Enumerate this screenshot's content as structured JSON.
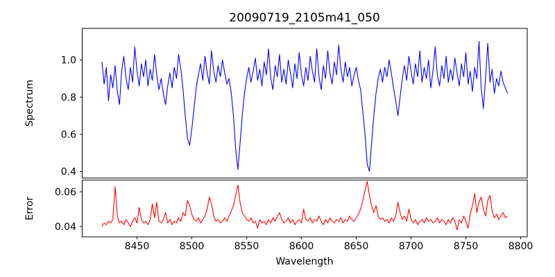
{
  "title": "20090719_2105m41_050",
  "chart_data": {
    "type": "line",
    "title": "20090719_2105m41_050",
    "xlabel": "Wavelength",
    "xlim": [
      8400,
      8806
    ],
    "xticks": [
      8450,
      8500,
      8550,
      8600,
      8650,
      8700,
      8750,
      8800
    ],
    "xtick_labels": [
      "8450",
      "8500",
      "8550",
      "8600",
      "8650",
      "8700",
      "8750",
      "8800"
    ],
    "grid": false,
    "legend": null,
    "x": [
      8418,
      8420,
      8422,
      8424,
      8426,
      8428,
      8430,
      8432,
      8434,
      8436,
      8438,
      8440,
      8442,
      8444,
      8446,
      8448,
      8450,
      8452,
      8454,
      8456,
      8458,
      8460,
      8462,
      8464,
      8466,
      8468,
      8470,
      8472,
      8474,
      8476,
      8478,
      8480,
      8482,
      8484,
      8486,
      8488,
      8490,
      8492,
      8494,
      8496,
      8498,
      8500,
      8502,
      8504,
      8506,
      8508,
      8510,
      8512,
      8514,
      8516,
      8518,
      8520,
      8522,
      8524,
      8526,
      8528,
      8530,
      8532,
      8534,
      8536,
      8538,
      8540,
      8542,
      8544,
      8546,
      8548,
      8550,
      8552,
      8554,
      8556,
      8558,
      8560,
      8562,
      8564,
      8566,
      8568,
      8570,
      8572,
      8574,
      8576,
      8578,
      8580,
      8582,
      8584,
      8586,
      8588,
      8590,
      8592,
      8594,
      8596,
      8598,
      8600,
      8602,
      8604,
      8606,
      8608,
      8610,
      8612,
      8614,
      8616,
      8618,
      8620,
      8622,
      8624,
      8626,
      8628,
      8630,
      8632,
      8634,
      8636,
      8638,
      8640,
      8642,
      8644,
      8646,
      8648,
      8650,
      8652,
      8654,
      8656,
      8658,
      8660,
      8662,
      8664,
      8666,
      8668,
      8670,
      8672,
      8674,
      8676,
      8678,
      8680,
      8682,
      8684,
      8686,
      8688,
      8690,
      8692,
      8694,
      8696,
      8698,
      8700,
      8702,
      8704,
      8706,
      8708,
      8710,
      8712,
      8714,
      8716,
      8718,
      8720,
      8722,
      8724,
      8726,
      8728,
      8730,
      8732,
      8734,
      8736,
      8738,
      8740,
      8742,
      8744,
      8746,
      8748,
      8750,
      8752,
      8754,
      8756,
      8758,
      8760,
      8762,
      8764,
      8766,
      8768,
      8770,
      8772,
      8774,
      8776,
      8778,
      8780,
      8782,
      8784,
      8786,
      8788
    ],
    "panels": [
      {
        "ylabel": "Spectrum",
        "color": "#0000ff",
        "ylim": [
          0.365,
          1.17
        ],
        "yticks": [
          0.4,
          0.6,
          0.8,
          1.0
        ],
        "ytick_labels": [
          "0.4",
          "0.6",
          "0.8",
          "1.0"
        ],
        "absorption_features": [
          8476,
          8498,
          8542,
          8662,
          8688
        ],
        "values": [
          0.99,
          0.87,
          0.96,
          0.78,
          0.92,
          0.85,
          0.97,
          0.83,
          0.76,
          0.94,
          1.02,
          0.9,
          0.84,
          0.96,
          0.88,
          1.07,
          0.94,
          0.86,
          0.98,
          0.91,
          1.0,
          0.86,
          0.95,
          0.89,
          1.03,
          0.92,
          0.84,
          0.9,
          0.82,
          0.76,
          0.86,
          0.93,
          0.85,
          0.96,
          0.9,
          1.03,
          0.95,
          0.84,
          0.7,
          0.58,
          0.54,
          0.63,
          0.74,
          0.85,
          0.92,
          0.98,
          0.89,
          1.02,
          0.93,
          0.87,
          1.05,
          0.94,
          0.88,
          0.97,
          0.91,
          1.0,
          0.93,
          0.87,
          0.9,
          0.82,
          0.7,
          0.52,
          0.41,
          0.55,
          0.7,
          0.82,
          0.9,
          0.96,
          0.88,
          0.94,
          1.01,
          0.89,
          0.95,
          0.86,
          0.99,
          0.92,
          1.06,
          0.9,
          0.84,
          0.97,
          0.91,
          1.03,
          0.88,
          0.95,
          0.87,
          1.0,
          0.93,
          0.85,
          0.98,
          0.9,
          1.04,
          0.92,
          0.86,
          0.96,
          0.89,
          1.02,
          0.94,
          0.88,
          1.06,
          0.91,
          0.84,
          0.97,
          0.9,
          1.05,
          0.93,
          0.87,
          0.99,
          0.92,
          1.08,
          0.95,
          0.88,
          0.99,
          0.91,
          0.96,
          0.86,
          0.92,
          0.96,
          0.89,
          0.84,
          0.72,
          0.6,
          0.44,
          0.4,
          0.55,
          0.7,
          0.82,
          0.9,
          0.95,
          0.88,
          0.96,
          0.91,
          1.0,
          0.93,
          0.85,
          0.78,
          0.7,
          0.8,
          0.9,
          0.97,
          0.89,
          1.02,
          0.94,
          0.87,
          0.98,
          0.91,
          1.05,
          0.88,
          0.96,
          0.9,
          1.0,
          0.85,
          0.94,
          1.07,
          0.92,
          0.86,
          0.97,
          0.9,
          1.02,
          0.88,
          0.95,
          0.89,
          1.01,
          0.93,
          0.86,
          0.98,
          0.91,
          1.04,
          0.87,
          0.94,
          0.83,
          0.96,
          0.9,
          1.1,
          0.85,
          0.74,
          0.91,
          1.09,
          0.88,
          0.95,
          0.82,
          0.9,
          0.86,
          0.94,
          0.88,
          0.85,
          0.82
        ]
      },
      {
        "ylabel": "Error",
        "color": "#ff0000",
        "ylim": [
          0.034,
          0.0668
        ],
        "yticks": [
          0.04,
          0.06
        ],
        "ytick_labels": [
          "0.04",
          "0.06"
        ],
        "values": [
          0.04,
          0.042,
          0.041,
          0.043,
          0.042,
          0.044,
          0.063,
          0.046,
          0.042,
          0.043,
          0.041,
          0.044,
          0.042,
          0.04,
          0.043,
          0.045,
          0.042,
          0.051,
          0.044,
          0.042,
          0.043,
          0.041,
          0.044,
          0.053,
          0.045,
          0.054,
          0.043,
          0.042,
          0.044,
          0.048,
          0.042,
          0.044,
          0.041,
          0.043,
          0.042,
          0.045,
          0.043,
          0.048,
          0.046,
          0.055,
          0.052,
          0.047,
          0.044,
          0.043,
          0.045,
          0.042,
          0.044,
          0.046,
          0.05,
          0.057,
          0.053,
          0.046,
          0.043,
          0.044,
          0.042,
          0.043,
          0.045,
          0.043,
          0.046,
          0.049,
          0.052,
          0.058,
          0.064,
          0.054,
          0.048,
          0.046,
          0.044,
          0.043,
          0.045,
          0.042,
          0.043,
          0.039,
          0.044,
          0.042,
          0.043,
          0.041,
          0.044,
          0.042,
          0.045,
          0.043,
          0.046,
          0.048,
          0.044,
          0.042,
          0.043,
          0.045,
          0.042,
          0.044,
          0.041,
          0.043,
          0.044,
          0.042,
          0.05,
          0.044,
          0.043,
          0.045,
          0.042,
          0.044,
          0.043,
          0.046,
          0.043,
          0.041,
          0.044,
          0.042,
          0.045,
          0.043,
          0.042,
          0.044,
          0.043,
          0.045,
          0.042,
          0.044,
          0.043,
          0.046,
          0.044,
          0.043,
          0.045,
          0.047,
          0.05,
          0.055,
          0.061,
          0.066,
          0.058,
          0.052,
          0.048,
          0.052,
          0.046,
          0.044,
          0.045,
          0.043,
          0.044,
          0.042,
          0.045,
          0.043,
          0.046,
          0.054,
          0.048,
          0.044,
          0.046,
          0.043,
          0.05,
          0.044,
          0.042,
          0.044,
          0.041,
          0.043,
          0.044,
          0.042,
          0.045,
          0.043,
          0.044,
          0.042,
          0.043,
          0.045,
          0.042,
          0.044,
          0.043,
          0.041,
          0.044,
          0.042,
          0.045,
          0.043,
          0.038,
          0.044,
          0.042,
          0.046,
          0.043,
          0.039,
          0.047,
          0.052,
          0.059,
          0.048,
          0.054,
          0.057,
          0.05,
          0.046,
          0.055,
          0.058,
          0.049,
          0.045,
          0.047,
          0.044,
          0.046,
          0.048,
          0.045,
          0.046
        ]
      }
    ]
  }
}
